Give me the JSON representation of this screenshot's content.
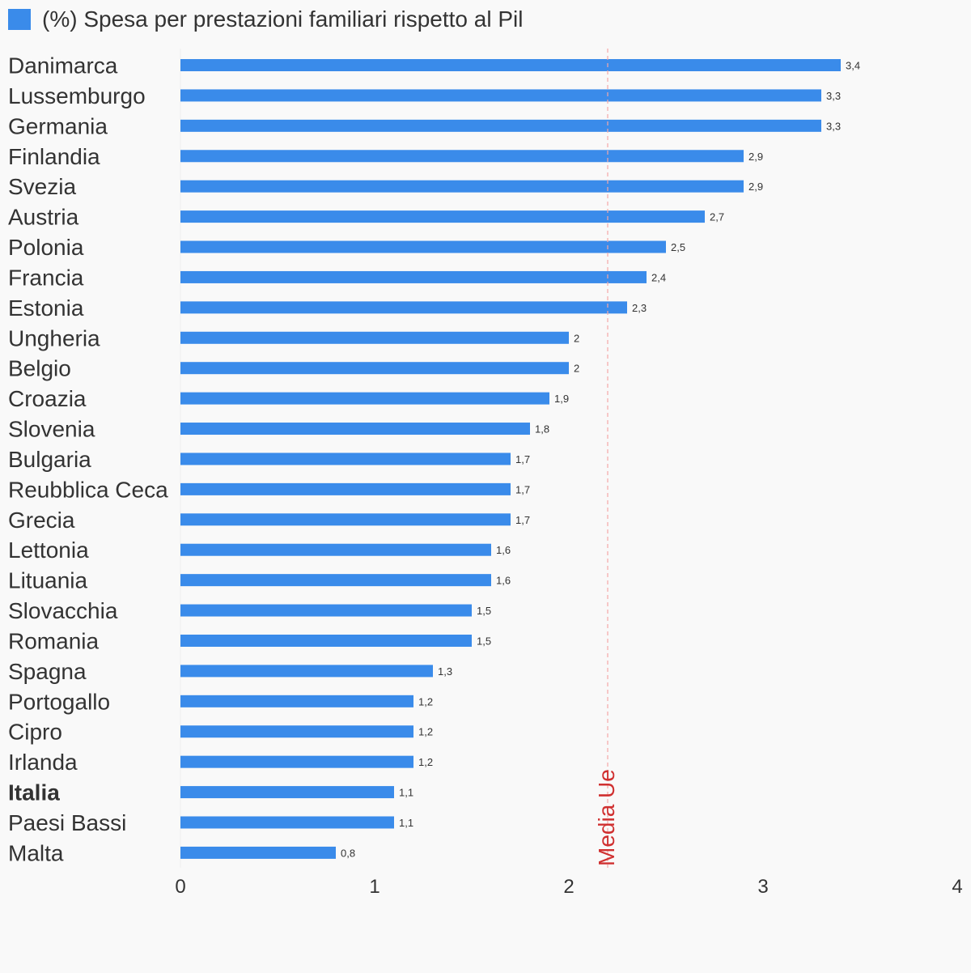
{
  "legend": {
    "label": "(%) Spesa per prestazioni familiari rispetto al Pil",
    "color": "#3a8bea"
  },
  "chart_data": {
    "type": "bar",
    "orientation": "horizontal",
    "series": [
      {
        "name": "(%) Spesa per prestazioni familiari rispetto al Pil",
        "color": "#3a8bea",
        "values": [
          3.4,
          3.3,
          3.3,
          2.9,
          2.9,
          2.7,
          2.5,
          2.4,
          2.3,
          2,
          2,
          1.9,
          1.8,
          1.7,
          1.7,
          1.7,
          1.6,
          1.6,
          1.5,
          1.5,
          1.3,
          1.2,
          1.2,
          1.2,
          1.1,
          1.1,
          0.8
        ]
      }
    ],
    "categories": [
      "Danimarca",
      "Lussemburgo",
      "Germania",
      "Finlandia",
      "Svezia",
      "Austria",
      "Polonia",
      "Francia",
      "Estonia",
      "Ungheria",
      "Belgio",
      "Croazia",
      "Slovenia",
      "Bulgaria",
      "Reubblica Ceca",
      "Grecia",
      "Lettonia",
      "Lituania",
      "Slovacchia",
      "Romania",
      "Spagna",
      "Portogallo",
      "Cipro",
      "Irlanda",
      "Italia",
      "Paesi Bassi",
      "Malta"
    ],
    "value_labels": [
      "3,4",
      "3,3",
      "3,3",
      "2,9",
      "2,9",
      "2,7",
      "2,5",
      "2,4",
      "2,3",
      "2",
      "2",
      "1,9",
      "1,8",
      "1,7",
      "1,7",
      "1,7",
      "1,6",
      "1,6",
      "1,5",
      "1,5",
      "1,3",
      "1,2",
      "1,2",
      "1,2",
      "1,1",
      "1,1",
      "0,8"
    ],
    "highlight_category": "Italia",
    "xlim": [
      0,
      4
    ],
    "x_ticks": [
      "0",
      "1",
      "2",
      "3",
      "4"
    ],
    "reference_line": {
      "value": 2.2,
      "label": "Media Ue",
      "color": "#d03030"
    },
    "legend_position": "top-left",
    "grid": false
  }
}
